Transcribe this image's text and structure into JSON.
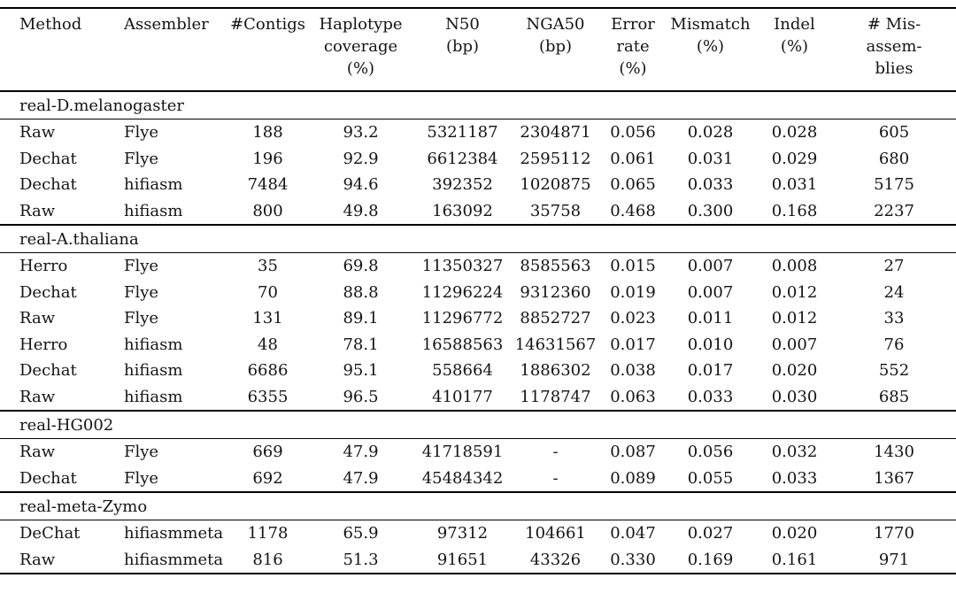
{
  "colors": {
    "background": "#ffffff",
    "text": "#141414",
    "rule": "#000000"
  },
  "table": {
    "headers": [
      {
        "name": "method",
        "lines": [
          "Method"
        ],
        "align": "left"
      },
      {
        "name": "assembler",
        "lines": [
          "Assembler"
        ],
        "align": "left"
      },
      {
        "name": "contigs",
        "lines": [
          "#Contigs"
        ],
        "align": "center"
      },
      {
        "name": "haplotype-coverage",
        "lines": [
          "Haplotype",
          "coverage",
          "(%)"
        ],
        "align": "center"
      },
      {
        "name": "n50",
        "lines": [
          "N50",
          "(bp)"
        ],
        "align": "center"
      },
      {
        "name": "nga50",
        "lines": [
          "NGA50",
          "(bp)"
        ],
        "align": "center"
      },
      {
        "name": "error-rate",
        "lines": [
          "Error",
          "rate",
          "(%)"
        ],
        "align": "center"
      },
      {
        "name": "mismatch",
        "lines": [
          "Mismatch",
          "(%)"
        ],
        "align": "center"
      },
      {
        "name": "indel",
        "lines": [
          "Indel",
          "(%)"
        ],
        "align": "center"
      },
      {
        "name": "misassemblies",
        "lines": [
          "# Mis-",
          "assem-",
          "blies"
        ],
        "align": "center"
      }
    ],
    "sections": [
      {
        "label": "real-D.melanogaster",
        "rows": [
          [
            "Raw",
            "Flye",
            "188",
            "93.2",
            "5321187",
            "2304871",
            "0.056",
            "0.028",
            "0.028",
            "605"
          ],
          [
            "Dechat",
            "Flye",
            "196",
            "92.9",
            "6612384",
            "2595112",
            "0.061",
            "0.031",
            "0.029",
            "680"
          ],
          [
            "Dechat",
            "hifiasm",
            "7484",
            "94.6",
            "392352",
            "1020875",
            "0.065",
            "0.033",
            "0.031",
            "5175"
          ],
          [
            "Raw",
            "hifiasm",
            "800",
            "49.8",
            "163092",
            "35758",
            "0.468",
            "0.300",
            "0.168",
            "2237"
          ]
        ]
      },
      {
        "label": "real-A.thaliana",
        "rows": [
          [
            "Herro",
            "Flye",
            "35",
            "69.8",
            "11350327",
            "8585563",
            "0.015",
            "0.007",
            "0.008",
            "27"
          ],
          [
            "Dechat",
            "Flye",
            "70",
            "88.8",
            "11296224",
            "9312360",
            "0.019",
            "0.007",
            "0.012",
            "24"
          ],
          [
            "Raw",
            "Flye",
            "131",
            "89.1",
            "11296772",
            "8852727",
            "0.023",
            "0.011",
            "0.012",
            "33"
          ],
          [
            "Herro",
            "hifiasm",
            "48",
            "78.1",
            "16588563",
            "14631567",
            "0.017",
            "0.010",
            "0.007",
            "76"
          ],
          [
            "Dechat",
            "hifiasm",
            "6686",
            "95.1",
            "558664",
            "1886302",
            "0.038",
            "0.017",
            "0.020",
            "552"
          ],
          [
            "Raw",
            "hifiasm",
            "6355",
            "96.5",
            "410177",
            "1178747",
            "0.063",
            "0.033",
            "0.030",
            "685"
          ]
        ]
      },
      {
        "label": "real-HG002",
        "rows": [
          [
            "Raw",
            "Flye",
            "669",
            "47.9",
            "41718591",
            "-",
            "0.087",
            "0.056",
            "0.032",
            "1430"
          ],
          [
            "Dechat",
            "Flye",
            "692",
            "47.9",
            "45484342",
            "-",
            "0.089",
            "0.055",
            "0.033",
            "1367"
          ]
        ]
      },
      {
        "label": "real-meta-Zymo",
        "rows": [
          [
            "DeChat",
            "hifiasmmeta",
            "1178",
            "65.9",
            "97312",
            "104661",
            "0.047",
            "0.027",
            "0.020",
            "1770"
          ],
          [
            "Raw",
            "hifiasmmeta",
            "816",
            "51.3",
            "91651",
            "43326",
            "0.330",
            "0.169",
            "0.161",
            "971"
          ]
        ]
      }
    ]
  }
}
